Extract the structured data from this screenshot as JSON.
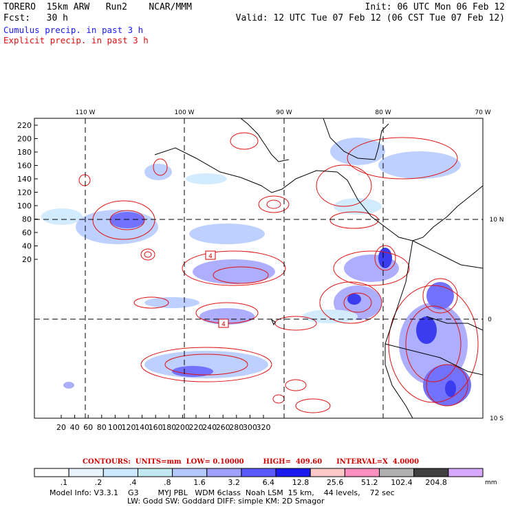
{
  "header": {
    "left_line1": "TORERO  15km ARW   Run2    NCAR/MMM",
    "left_line2": "Fcst:   30 h",
    "right_line1": "Init: 06 UTC Mon 06 Feb 12",
    "right_line2": "Valid: 12 UTC Tue 07 Feb 12 (06 CST Tue 07 Feb 12)"
  },
  "legend": {
    "cumulus": "Cumulus precip. in past 3 h",
    "explicit": "Explicit precip. in past 3 h"
  },
  "map": {
    "lon_labels": [
      "110 W",
      "100 W",
      "90 W",
      "80 W",
      "70 W"
    ],
    "lat_labels": [
      "10 N",
      "0",
      "10 S"
    ],
    "y_ticks": [
      "220",
      "200",
      "180",
      "160",
      "140",
      "120",
      "100",
      "80",
      "60",
      "40",
      "20"
    ],
    "x_ticks": [
      "20",
      "40",
      "60",
      "80",
      "100",
      "120",
      "140",
      "160",
      "180",
      "200",
      "220",
      "240",
      "260",
      "280",
      "300",
      "320"
    ],
    "box_labels": [
      "4",
      "4"
    ]
  },
  "contour_info": "CONTOURS:  UNITS=mm  LOW= 0.10000        HIGH=  409.60      INTERVAL=X  4.0000",
  "colorbar": {
    "levels": [
      ".1",
      ".2",
      ".4",
      ".8",
      "1.6",
      "3.2",
      "6.4",
      "12.8",
      "25.6",
      "51.2",
      "102.4",
      "204.8"
    ],
    "unit": "mm",
    "colors": [
      "#ffffff",
      "#e8f4ff",
      "#cce8ff",
      "#bfe8f0",
      "#b3c8ff",
      "#a0a0ff",
      "#5a5aff",
      "#1a1aee",
      "#ffc8c8",
      "#ff90c0",
      "#b0b0b0",
      "#404040",
      "#d8a8ff"
    ]
  },
  "model_info": {
    "line1": "Model Info: V3.3.1    G3        MYJ PBL   WDM 6class  Noah LSM  15 km,    44 levels,    72 sec",
    "line2": "LW: Godd SW: Goddard DIFF: simple KM: 2D Smagor"
  },
  "colors": {
    "cumulus": "#1a1aff",
    "explicit": "#e01010",
    "contour": "#d00000"
  }
}
